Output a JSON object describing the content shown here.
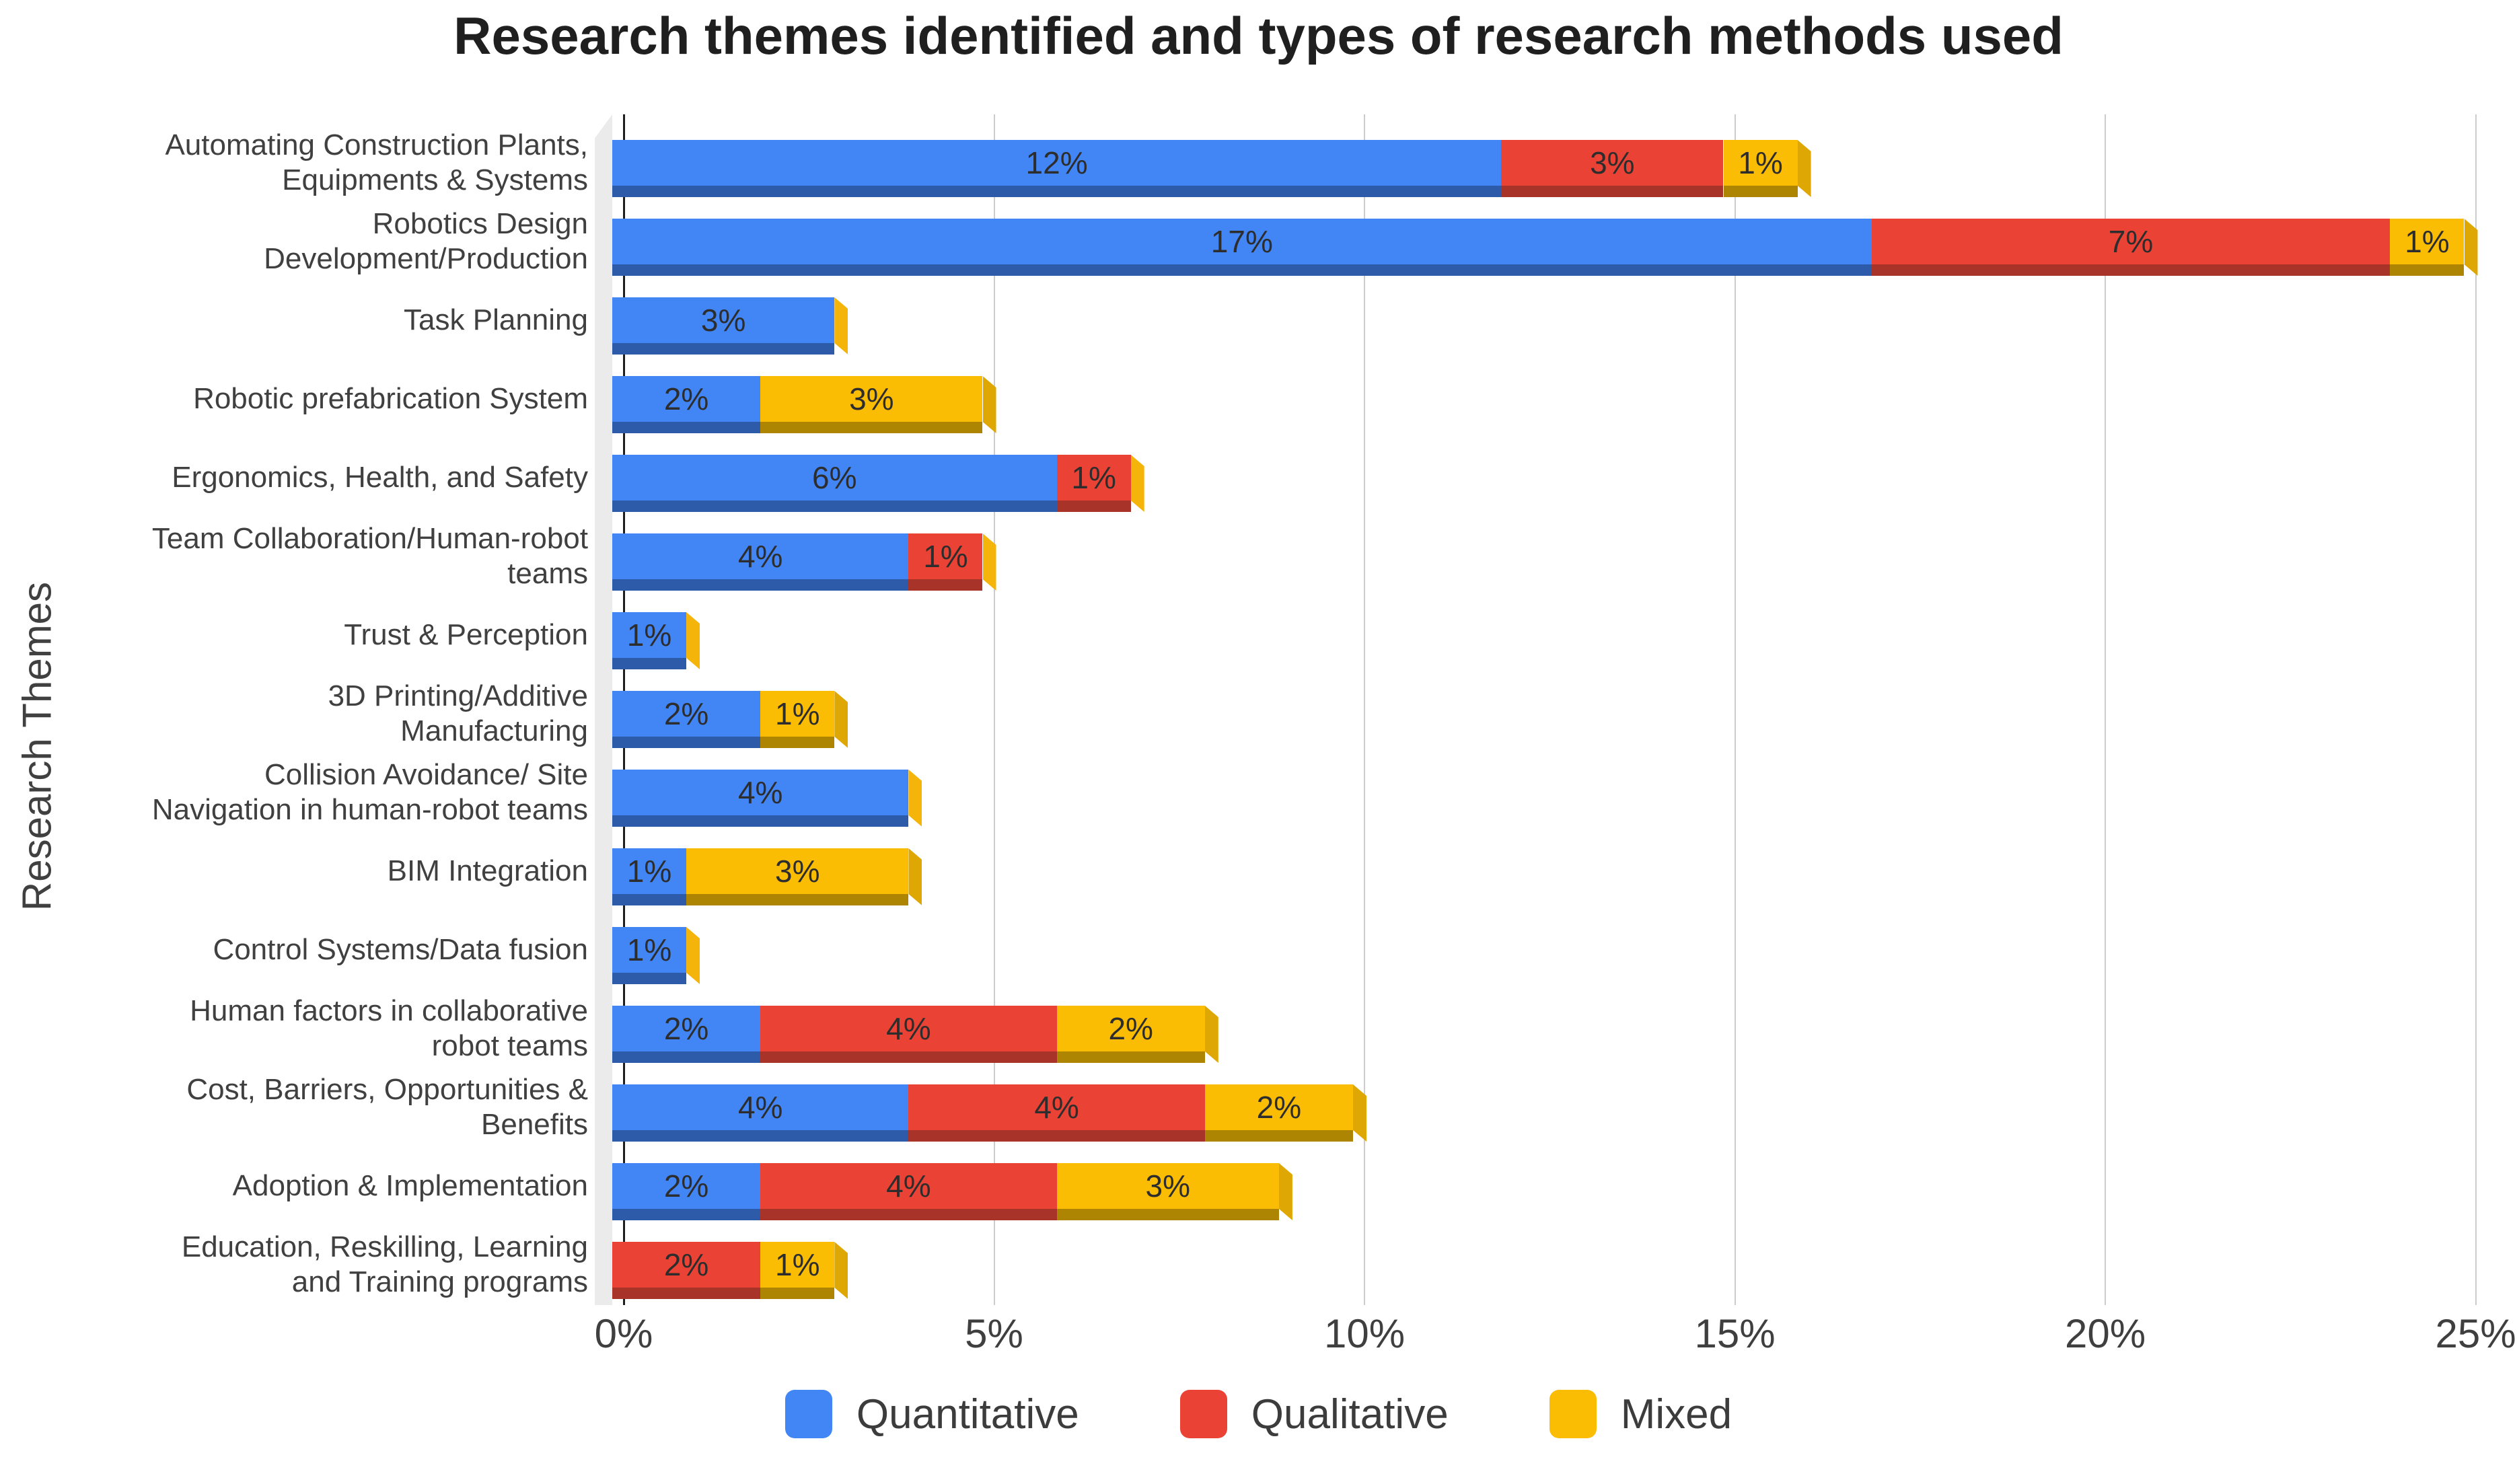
{
  "chart_data": {
    "type": "bar",
    "orientation": "horizontal",
    "stacked": true,
    "style": "3d-beveled-bars",
    "title": "Research themes identified and types of research methods used",
    "xlabel": "",
    "ylabel": "Research Themes",
    "xlim": [
      0,
      25
    ],
    "grid": true,
    "legend_position": "bottom",
    "value_suffix": "%",
    "x_ticks": [
      {
        "value": 0,
        "label": "0%"
      },
      {
        "value": 5,
        "label": "5%"
      },
      {
        "value": 10,
        "label": "10%"
      },
      {
        "value": 15,
        "label": "15%"
      },
      {
        "value": 20,
        "label": "20%"
      },
      {
        "value": 25,
        "label": "25%"
      }
    ],
    "categories": [
      "Automating Construction Plants,\nEquipments & Systems",
      "Robotics Design\nDevelopment/Production",
      "Task Planning",
      "Robotic prefabrication System",
      "Ergonomics, Health, and Safety",
      "Team Collaboration/Human-robot\nteams",
      "Trust & Perception",
      "3D Printing/Additive\nManufacturing",
      "Collision Avoidance/ Site\nNavigation in human-robot teams",
      "BIM Integration",
      "Control Systems/Data fusion",
      "Human factors in collaborative\nrobot teams",
      "Cost, Barriers, Opportunities &\nBenefits",
      "Adoption & Implementation",
      "Education, Reskilling, Learning\nand Training programs"
    ],
    "series": [
      {
        "name": "Quantitative",
        "color": "#4285F4",
        "depth_color": "#2D5BA9",
        "values": [
          12,
          17,
          3,
          2,
          6,
          4,
          1,
          2,
          4,
          1,
          1,
          2,
          4,
          2,
          0
        ]
      },
      {
        "name": "Qualitative",
        "color": "#EA4335",
        "depth_color": "#A83429",
        "values": [
          3,
          7,
          0,
          0,
          1,
          1,
          0,
          0,
          0,
          0,
          0,
          4,
          4,
          4,
          2
        ]
      },
      {
        "name": "Mixed",
        "color": "#FBBC04",
        "depth_color": "#AD8503",
        "values": [
          1,
          1,
          0,
          3,
          0,
          0,
          0,
          1,
          0,
          3,
          0,
          2,
          2,
          3,
          1
        ]
      }
    ],
    "colors": {
      "end_cap_bright": "#F5B40A",
      "end_cap_dark": "#DFA703",
      "gridline": "#cccccc",
      "axis": "#1f1f1f",
      "wall": "#ebebeb",
      "title_text": "#1f1f1f",
      "category_text": "#404040",
      "tick_text": "#3f3f3f",
      "value_text": "#2d2d2d",
      "legend_text": "#3c3c3c",
      "background": "#ffffff"
    }
  }
}
